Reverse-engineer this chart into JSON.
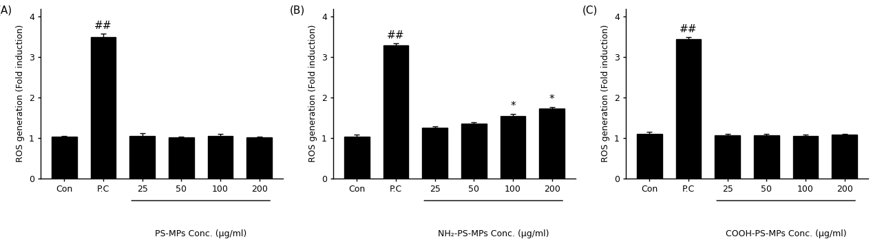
{
  "panels": [
    {
      "label": "(A)",
      "categories": [
        "Con",
        "P.C",
        "25",
        "50",
        "100",
        "200"
      ],
      "values": [
        1.03,
        3.5,
        1.05,
        1.01,
        1.05,
        1.01
      ],
      "errors": [
        0.03,
        0.08,
        0.07,
        0.02,
        0.06,
        0.02
      ],
      "annotations": [
        null,
        "##",
        null,
        null,
        null,
        null
      ],
      "xlabel_main": "PS-MPs Conc. (μg/ml)",
      "xlabel_bracket_start": 2,
      "xlabel_bracket_end": 5
    },
    {
      "label": "(B)",
      "categories": [
        "Con",
        "P.C",
        "25",
        "50",
        "100",
        "200"
      ],
      "values": [
        1.04,
        3.3,
        1.25,
        1.35,
        1.55,
        1.73
      ],
      "errors": [
        0.04,
        0.04,
        0.04,
        0.04,
        0.05,
        0.04
      ],
      "annotations": [
        null,
        "##",
        null,
        null,
        "*",
        "*"
      ],
      "xlabel_main": "NH₂-PS-MPs Conc. (μg/ml)",
      "xlabel_bracket_start": 2,
      "xlabel_bracket_end": 5
    },
    {
      "label": "(C)",
      "categories": [
        "Con",
        "P.C",
        "25",
        "50",
        "100",
        "200"
      ],
      "values": [
        1.1,
        3.45,
        1.07,
        1.07,
        1.05,
        1.08
      ],
      "errors": [
        0.05,
        0.05,
        0.03,
        0.03,
        0.03,
        0.03
      ],
      "annotations": [
        null,
        "##",
        null,
        null,
        null,
        null
      ],
      "xlabel_main": "COOH-PS-MPs Conc. (μg/ml)",
      "xlabel_bracket_start": 2,
      "xlabel_bracket_end": 5
    }
  ],
  "ylabel": "ROS generation (Fold induction)",
  "ylim": [
    0,
    4.2
  ],
  "yticks": [
    0,
    1,
    2,
    3,
    4
  ],
  "bar_color": "#000000",
  "bar_width": 0.65,
  "figsize": [
    12.68,
    3.64
  ],
  "dpi": 100,
  "font_size_label": 9,
  "font_size_panel": 11,
  "font_size_annot": 11
}
